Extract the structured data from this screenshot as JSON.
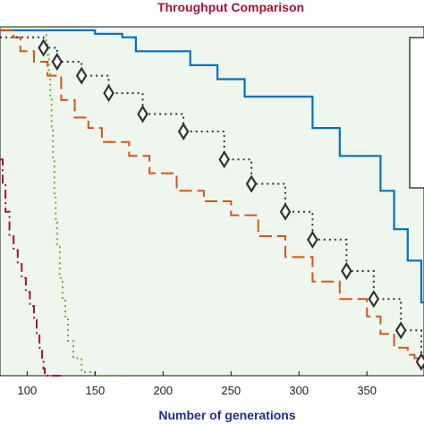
{
  "chart_data": {
    "type": "line",
    "title": "Throughput Comparison",
    "xlabel": "Number of generations",
    "ylabel": "",
    "xlim": [
      80,
      392
    ],
    "ylim": [
      0,
      1
    ],
    "x_ticks": [
      100,
      150,
      200,
      250,
      300,
      350
    ],
    "x_tick_labels": [
      "100",
      "150",
      "200",
      "250",
      "300",
      "350"
    ],
    "grid": false,
    "legend": "right (partially visible box, entries not legible)",
    "series": [
      {
        "color": "#0072BD",
        "style": "solid",
        "x": [
          80,
          100,
          150,
          170,
          180,
          220,
          240,
          260,
          310,
          330,
          360,
          370,
          380,
          390,
          392
        ],
        "y": [
          0.99,
          0.99,
          0.98,
          0.97,
          0.93,
          0.89,
          0.85,
          0.8,
          0.71,
          0.63,
          0.53,
          0.42,
          0.33,
          0.21,
          0.21
        ]
      },
      {
        "color": "#D95319",
        "style": "dashed",
        "x": [
          80,
          90,
          95,
          105,
          115,
          125,
          135,
          145,
          155,
          175,
          190,
          210,
          230,
          250,
          270,
          290,
          310,
          330,
          350,
          360,
          370,
          380,
          385,
          392
        ],
        "y": [
          0.99,
          0.97,
          0.93,
          0.9,
          0.86,
          0.79,
          0.74,
          0.71,
          0.67,
          0.63,
          0.58,
          0.53,
          0.5,
          0.46,
          0.4,
          0.34,
          0.27,
          0.22,
          0.17,
          0.12,
          0.08,
          0.06,
          0.05,
          0.05
        ]
      },
      {
        "color": "#333333",
        "style": "dotted",
        "marker": "diamond",
        "x": [
          80,
          112,
          122,
          140,
          160,
          185,
          215,
          245,
          265,
          290,
          310,
          335,
          355,
          375,
          390
        ],
        "y": [
          0.97,
          0.94,
          0.9,
          0.86,
          0.81,
          0.75,
          0.7,
          0.62,
          0.55,
          0.47,
          0.39,
          0.3,
          0.22,
          0.13,
          0.04
        ]
      },
      {
        "color": "#77AC30",
        "style": "dotted",
        "x": [
          80,
          113,
          114,
          115,
          116,
          117,
          118,
          119,
          120,
          121,
          122,
          124,
          126,
          128,
          130,
          134,
          140,
          150,
          165
        ],
        "y": [
          1.0,
          1.0,
          0.96,
          0.92,
          0.87,
          0.8,
          0.71,
          0.62,
          0.52,
          0.44,
          0.37,
          0.28,
          0.22,
          0.17,
          0.1,
          0.05,
          0.01,
          0.0,
          0.0
        ]
      },
      {
        "color": "#A2142F",
        "style": "dashdot",
        "x": [
          80,
          82,
          84,
          87,
          90,
          93,
          96,
          99,
          102,
          105,
          107,
          109,
          111,
          112,
          113,
          125
        ],
        "y": [
          0.62,
          0.55,
          0.47,
          0.4,
          0.36,
          0.32,
          0.28,
          0.24,
          0.2,
          0.16,
          0.12,
          0.08,
          0.04,
          0.02,
          0.0,
          0.0
        ]
      }
    ]
  }
}
